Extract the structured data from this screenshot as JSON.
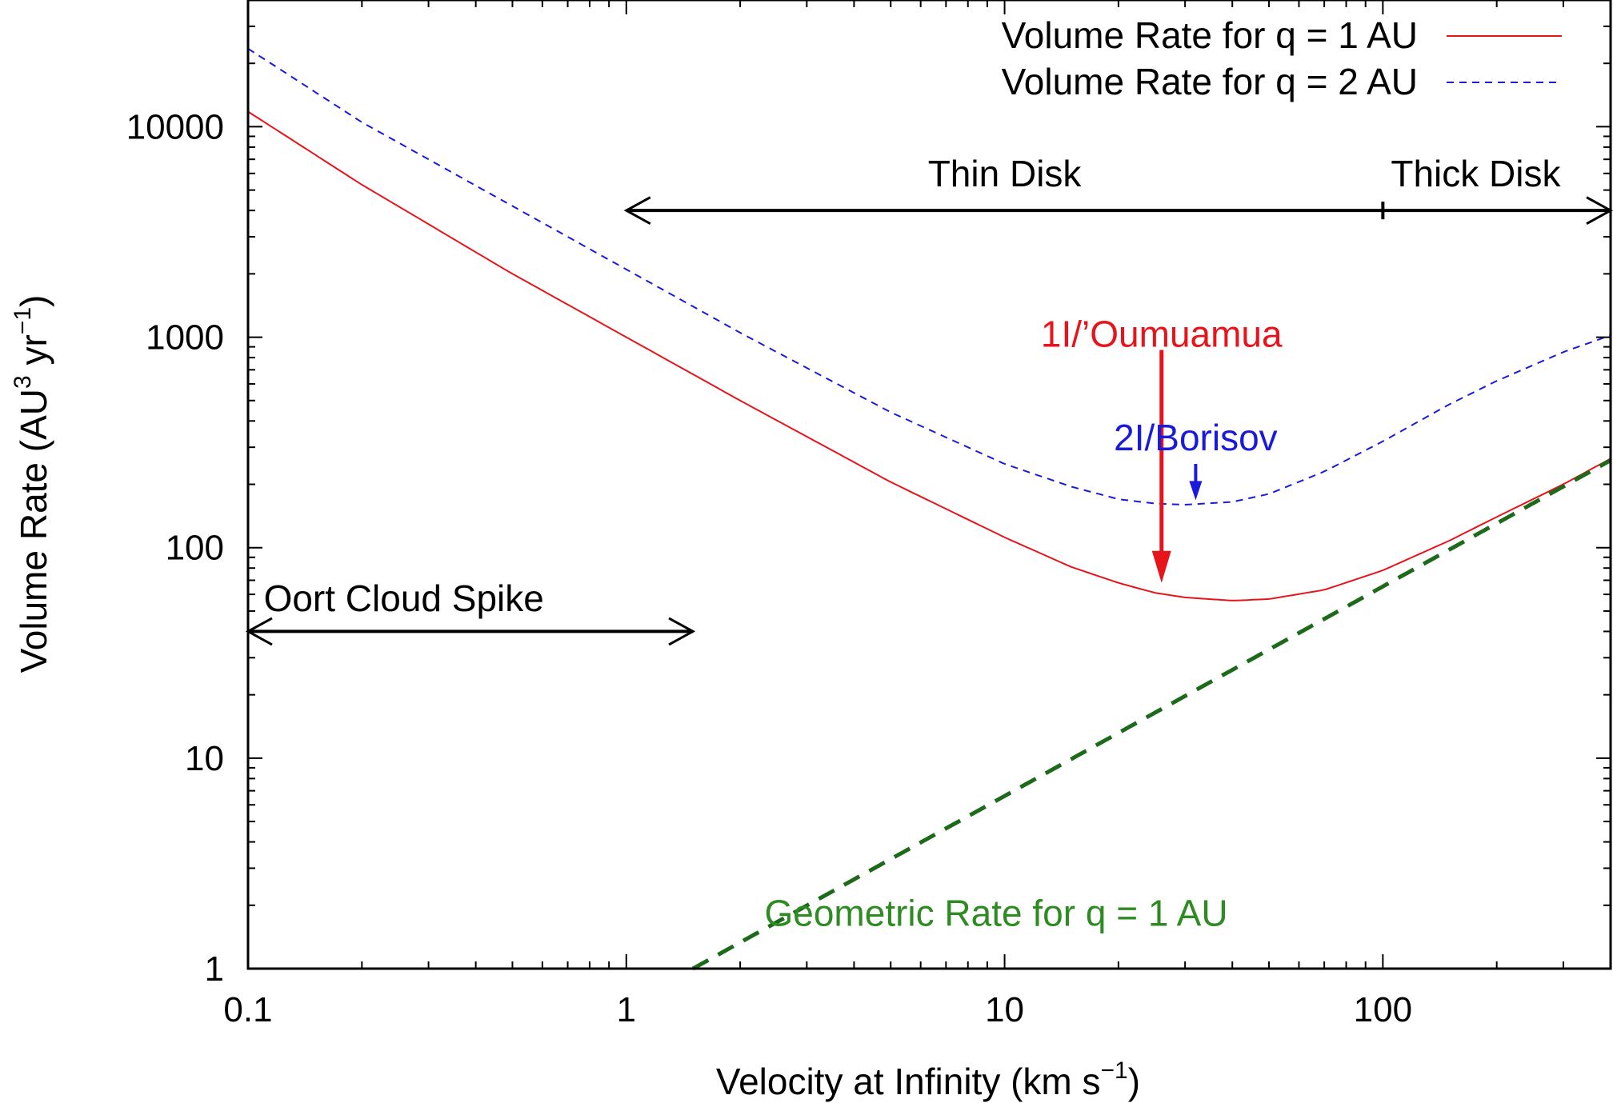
{
  "chart_data": {
    "type": "line",
    "title": "",
    "xlabel": "Velocity at Infinity (km s",
    "xlabel_sup": "−1",
    "xlabel_end": ")",
    "ylabel": "Volume Rate (AU",
    "ylabel_sup1": "3",
    "ylabel_mid": " yr",
    "ylabel_sup2": "−1",
    "ylabel_end": ")",
    "xscale": "log",
    "yscale": "log",
    "xlim": [
      0.1,
      400
    ],
    "ylim": [
      1,
      40000
    ],
    "xticks": [
      0.1,
      1,
      10,
      100
    ],
    "xtick_labels": [
      "0.1",
      "1",
      "10",
      "100"
    ],
    "yticks": [
      1,
      10,
      100,
      1000,
      10000
    ],
    "ytick_labels": [
      "1",
      "10",
      "100",
      "1000",
      "10000"
    ],
    "grid": false,
    "legend_position": "top-right",
    "series": [
      {
        "name": "Volume Rate for q = 1 AU",
        "color": "#e8141b",
        "style": "solid",
        "x": [
          0.1,
          0.2,
          0.5,
          1,
          2,
          5,
          10,
          15,
          20,
          25,
          30,
          40,
          50,
          70,
          100,
          150,
          200,
          300,
          400
        ],
        "y": [
          11800,
          5300,
          2000,
          1000,
          500,
          205,
          112,
          81,
          68,
          61,
          58,
          56,
          57,
          63,
          78,
          108,
          140,
          200,
          265
        ]
      },
      {
        "name": "Volume Rate for q = 2 AU",
        "color": "#1a1adc",
        "style": "dashed",
        "x": [
          0.1,
          0.2,
          0.5,
          1,
          2,
          5,
          10,
          15,
          20,
          25,
          30,
          40,
          50,
          70,
          100,
          150,
          200,
          300,
          400
        ],
        "y": [
          23500,
          10500,
          4200,
          2100,
          1050,
          440,
          250,
          195,
          170,
          162,
          160,
          165,
          180,
          230,
          320,
          480,
          620,
          850,
          1020
        ]
      },
      {
        "name": "Geometric Rate for q = 1 AU",
        "color": "#1d6b1a",
        "style": "dashed-thick",
        "x": [
          1.5,
          400
        ],
        "y": [
          1,
          260
        ]
      }
    ],
    "annotations": [
      {
        "text": "Oort Cloud Spike",
        "color": "#000000",
        "arrow_from": [
          0.1,
          40
        ],
        "arrow_to": [
          1.5,
          40
        ],
        "label_at": [
          0.11,
          50
        ]
      },
      {
        "text": "Thin Disk",
        "color": "#000000",
        "arrow_from": [
          1,
          4000
        ],
        "arrow_to": [
          100,
          4000
        ],
        "label_at": [
          10,
          5200
        ]
      },
      {
        "text": "Thick Disk",
        "color": "#000000",
        "arrow_from": [
          100,
          4000
        ],
        "arrow_to": [
          400,
          4000
        ],
        "label_at": [
          105,
          5200
        ]
      },
      {
        "text": "1I/’Oumuamua",
        "color": "#e8141b",
        "arrow_from": [
          26,
          870
        ],
        "arrow_to": [
          26,
          68
        ],
        "label_at": [
          26,
          900
        ]
      },
      {
        "text": "2I/Borisov",
        "color": "#1a1adc",
        "arrow_from": [
          32,
          250
        ],
        "arrow_to": [
          32,
          168
        ],
        "label_at": [
          32,
          290
        ]
      },
      {
        "text": "Geometric Rate for q = 1 AU",
        "color": "#2e8b22",
        "label_at": [
          9.5,
          1.6
        ]
      }
    ]
  }
}
